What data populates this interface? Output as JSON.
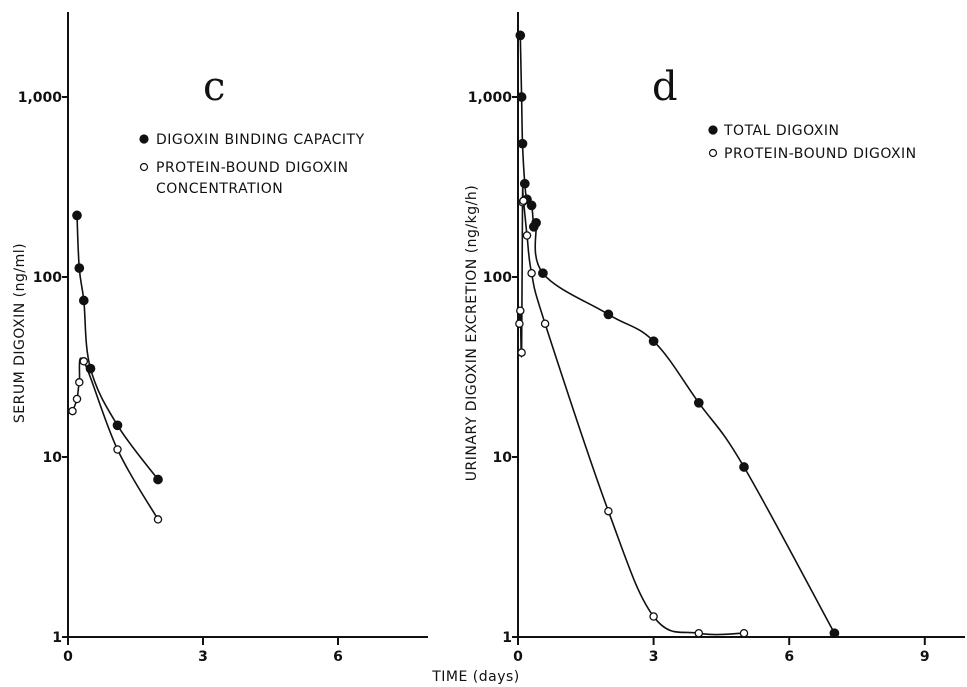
{
  "chart_data": [
    {
      "type": "line",
      "panel_label": "c",
      "ylabel": "SERUM DIGOXIN (ng/ml)",
      "xlabel": "",
      "yscale": "log",
      "ylim": [
        1,
        3000
      ],
      "xlim": [
        0,
        8
      ],
      "x_ticks": [
        "0",
        "3",
        "6"
      ],
      "y_ticks": [
        "1",
        "10",
        "100",
        "1,000"
      ],
      "legend_position": "top-right",
      "series": [
        {
          "name": "DIGOXIN BINDING CAPACITY",
          "marker": "filled-circle",
          "x": [
            0.2,
            0.25,
            0.35,
            0.5,
            1.1,
            2.0
          ],
          "y": [
            220,
            112,
            74,
            31,
            15,
            7.5
          ]
        },
        {
          "name": "PROTEIN-BOUND DIGOXIN CONCENTRATION",
          "legend_lines": [
            "PROTEIN-BOUND DIGOXIN",
            "CONCENTRATION"
          ],
          "marker": "open-circle",
          "x": [
            0.1,
            0.2,
            0.25,
            0.35,
            1.1,
            2.0
          ],
          "y": [
            18,
            21,
            26,
            34,
            11,
            4.5
          ]
        }
      ]
    },
    {
      "type": "line",
      "panel_label": "d",
      "ylabel": "URINARY DIGOXIN EXCRETION (ng/kg/h)",
      "xlabel": "TIME (days)",
      "yscale": "log",
      "ylim": [
        1,
        3000
      ],
      "xlim": [
        0,
        10
      ],
      "x_ticks": [
        "0",
        "3",
        "6",
        "9"
      ],
      "y_ticks": [
        "1",
        "10",
        "100",
        "1,000"
      ],
      "legend_position": "top-right",
      "series": [
        {
          "name": "TOTAL DIGOXIN",
          "marker": "filled-circle",
          "x": [
            0.05,
            0.08,
            0.1,
            0.15,
            0.2,
            0.3,
            0.35,
            0.4,
            0.55,
            2.0,
            3.0,
            4.0,
            5.0,
            7.0
          ],
          "y": [
            2200,
            1000,
            550,
            330,
            270,
            250,
            190,
            200,
            105,
            62,
            44,
            20,
            8.8,
            1.05
          ]
        },
        {
          "name": "PROTEIN-BOUND DIGOXIN",
          "marker": "open-circle",
          "x": [
            0.03,
            0.05,
            0.08,
            0.1,
            0.12,
            0.2,
            0.3,
            0.6,
            2.0,
            3.0,
            4.0,
            5.0
          ],
          "y": [
            55,
            65,
            38,
            260,
            265,
            170,
            105,
            55,
            5.0,
            1.3,
            1.05,
            1.05
          ]
        }
      ]
    }
  ]
}
